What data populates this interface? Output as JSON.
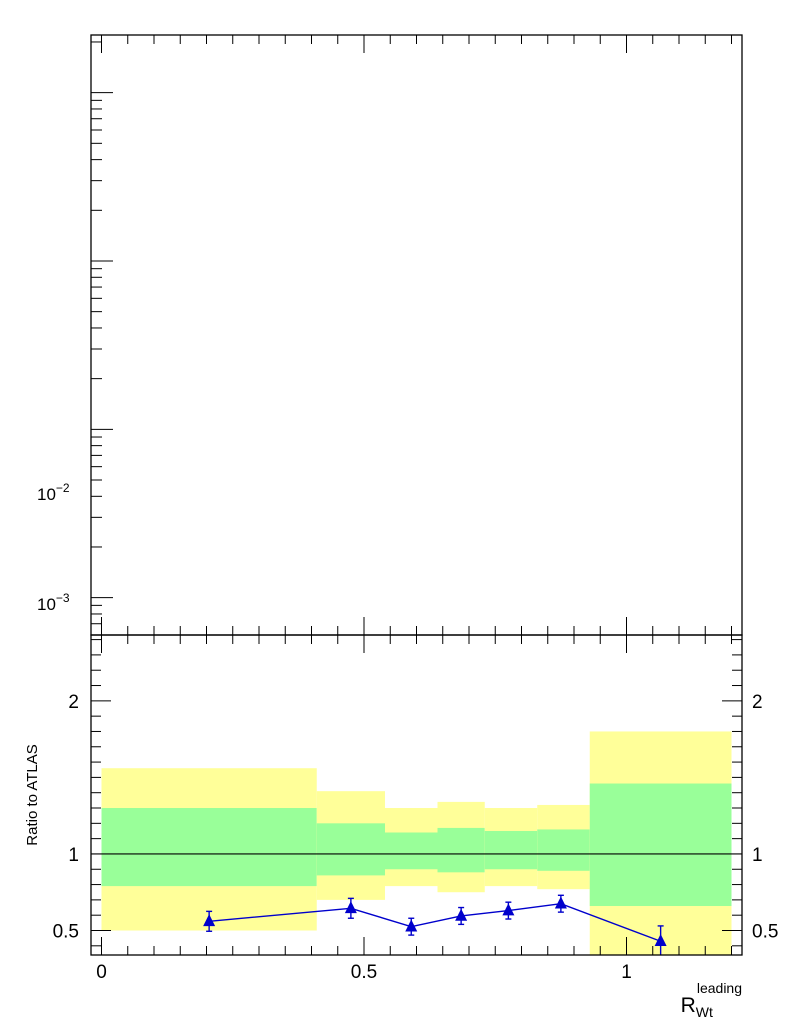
{
  "chart_data": [
    {
      "type": "line",
      "panel": "main",
      "yscale": "log",
      "xlim": [
        -0.02,
        1.22
      ],
      "ylim": [
        0.0006,
        2.2
      ],
      "ytick_labels": [
        {
          "value": 0.01,
          "base": "10",
          "exp": "−2"
        },
        {
          "value": 0.001,
          "base": "10",
          "exp": "−3"
        }
      ],
      "series": []
    },
    {
      "type": "line",
      "panel": "ratio",
      "ylabel": "Ratio to ATLAS",
      "xlabel": {
        "base": "R",
        "sub": "Wt",
        "sup": "leading"
      },
      "xlim": [
        -0.02,
        1.22
      ],
      "ylim": [
        0.34,
        2.43
      ],
      "reference_line": 1,
      "xticks": [
        0,
        0.5,
        1
      ],
      "xtick_labels": [
        "0",
        "0.5",
        "1"
      ],
      "yticks": [
        0.5,
        1,
        2
      ],
      "ytick_labels": [
        "0.5",
        "1",
        "2"
      ],
      "bands": {
        "bins": [
          0.0,
          0.41,
          0.54,
          0.64,
          0.73,
          0.83,
          0.93,
          1.2
        ],
        "outer_color": "#ffff99",
        "inner_color": "#99ff99",
        "outer_upper": [
          1.56,
          1.41,
          1.3,
          1.34,
          1.3,
          1.32,
          1.8
        ],
        "outer_lower": [
          0.5,
          0.7,
          0.79,
          0.75,
          0.79,
          0.77,
          0.34
        ],
        "inner_upper": [
          1.3,
          1.2,
          1.14,
          1.17,
          1.15,
          1.16,
          1.46
        ],
        "inner_lower": [
          0.79,
          0.86,
          0.9,
          0.88,
          0.9,
          0.89,
          0.66
        ]
      },
      "series": [
        {
          "color": "#0000cc",
          "marker": "triangle",
          "x": [
            0.205,
            0.475,
            0.59,
            0.685,
            0.775,
            0.875,
            1.065
          ],
          "y": [
            0.56,
            0.645,
            0.525,
            0.595,
            0.63,
            0.675,
            0.43
          ],
          "yerr": [
            0.065,
            0.065,
            0.055,
            0.055,
            0.055,
            0.055,
            0.1
          ]
        }
      ]
    }
  ]
}
